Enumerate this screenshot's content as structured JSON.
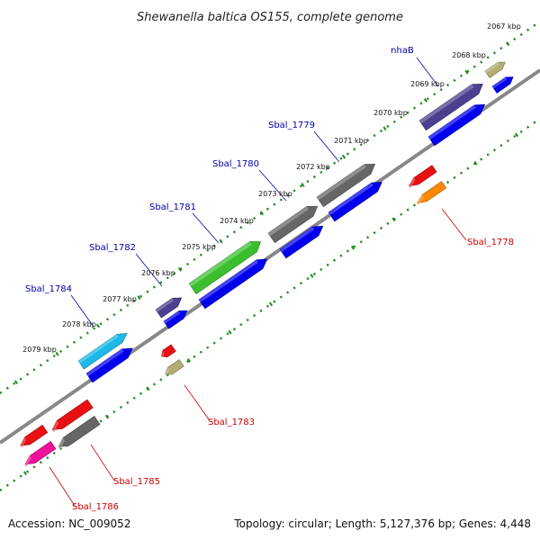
{
  "title": "Shewanella baltica OS155, complete genome",
  "footer": {
    "accession": "Accession: NC_009052",
    "summary": "Topology: circular; Length: 5,127,376 bp; Genes: 4,448"
  },
  "colors": {
    "backbone": "#888888",
    "dots": "#1e8a1e",
    "forward_label": "#0000aa",
    "reverse_label": "#cc0000",
    "cds_blue": "#0000ee",
    "cds_gray": "#666666",
    "cds_purple": "#4b3f8f",
    "cds_green": "#3bbf2f",
    "cds_cyan": "#1bb8e8",
    "cds_tan": "#b3ad74",
    "cds_red": "#e81010",
    "cds_orange": "#ff8800",
    "cds_pink": "#ee1199"
  },
  "ticks": [
    "2067 kbp",
    "2068 kbp",
    "2069 kbp",
    "2070 kbp",
    "2071 kbp",
    "2072 kbp",
    "2073 kbp",
    "2074 kbp",
    "2075 kbp",
    "2076 kbp",
    "2077 kbp",
    "2078 kbp",
    "2079 kbp"
  ],
  "forward_labels": [
    "nhaB",
    "Sbal_1779",
    "Sbal_1780",
    "Sbal_1781",
    "Sbal_1782",
    "Sbal_1784"
  ],
  "reverse_labels": [
    "Sbal_1778",
    "Sbal_1783",
    "Sbal_1785",
    "Sbal_1786"
  ],
  "features": [
    {
      "color": "cds_tan",
      "strand": "forward"
    },
    {
      "color": "cds_blue",
      "strand": "forward"
    },
    {
      "color": "cds_purple",
      "strand": "forward"
    },
    {
      "color": "cds_blue",
      "strand": "forward"
    },
    {
      "color": "cds_gray",
      "strand": "forward"
    },
    {
      "color": "cds_gray",
      "strand": "forward"
    },
    {
      "color": "cds_blue",
      "strand": "forward"
    },
    {
      "color": "cds_gray",
      "strand": "forward"
    },
    {
      "color": "cds_blue",
      "strand": "forward"
    },
    {
      "color": "cds_green",
      "strand": "forward"
    },
    {
      "color": "cds_blue",
      "strand": "forward"
    },
    {
      "color": "cds_purple",
      "strand": "forward"
    },
    {
      "color": "cds_blue",
      "strand": "forward"
    },
    {
      "color": "cds_cyan",
      "strand": "forward"
    },
    {
      "color": "cds_blue",
      "strand": "forward"
    },
    {
      "color": "cds_red",
      "strand": "reverse"
    },
    {
      "color": "cds_orange",
      "strand": "reverse"
    },
    {
      "color": "cds_red",
      "strand": "reverse"
    },
    {
      "color": "cds_tan",
      "strand": "reverse"
    },
    {
      "color": "cds_red",
      "strand": "reverse"
    },
    {
      "color": "cds_red",
      "strand": "reverse"
    },
    {
      "color": "cds_gray",
      "strand": "reverse"
    },
    {
      "color": "cds_pink",
      "strand": "reverse"
    }
  ]
}
